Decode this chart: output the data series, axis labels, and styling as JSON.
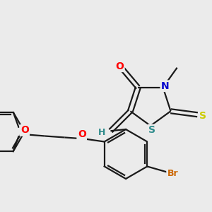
{
  "bg_color": "#ebebeb",
  "bond_color": "#1a1a1a",
  "bond_lw": 1.6,
  "atom_colors": {
    "O": "#ff0000",
    "N": "#0000cc",
    "S_thio": "#cccc00",
    "S_ring": "#2e8b8b",
    "Br": "#cc6600",
    "H": "#2e8b8b",
    "C": "#1a1a1a"
  }
}
